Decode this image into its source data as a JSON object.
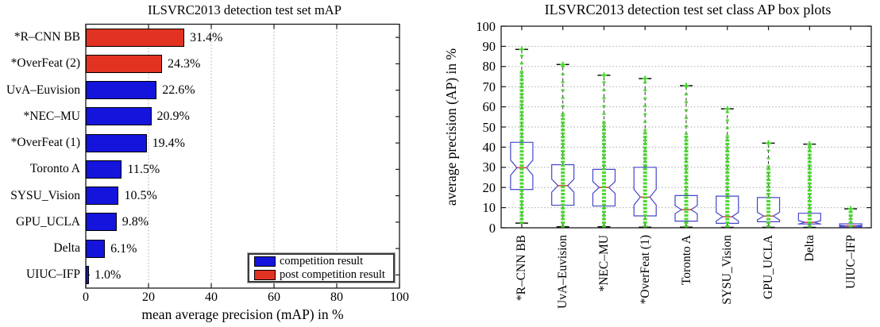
{
  "chart_data": [
    {
      "type": "bar",
      "orientation": "horizontal",
      "title": "ILSVRC2013 detection test set mAP",
      "xlabel": "mean average precision (mAP) in %",
      "xlim": [
        0,
        100
      ],
      "x_ticks": [
        0,
        20,
        40,
        60,
        80,
        100
      ],
      "grid": "vertical dotted at 20,40,60,80",
      "categories": [
        "*R–CNN BB",
        "*OverFeat (2)",
        "UvA–Euvision",
        "*NEC–MU",
        "*OverFeat (1)",
        "Toronto A",
        "SYSU_Vision",
        "GPU_UCLA",
        "Delta",
        "UIUC–IFP"
      ],
      "values": [
        31.4,
        24.3,
        22.6,
        20.9,
        19.4,
        11.5,
        10.5,
        9.8,
        6.1,
        1.0
      ],
      "value_labels": [
        "31.4%",
        "24.3%",
        "22.6%",
        "20.9%",
        "19.4%",
        "11.5%",
        "10.5%",
        "9.8%",
        "6.1%",
        "1.0%"
      ],
      "bar_groups": [
        "post",
        "post",
        "competition",
        "competition",
        "competition",
        "competition",
        "competition",
        "competition",
        "competition",
        "competition"
      ],
      "legend": {
        "position": "bottom-right",
        "entries": [
          {
            "label": "competition result",
            "group": "competition"
          },
          {
            "label": "post competition result",
            "group": "post"
          }
        ]
      }
    },
    {
      "type": "boxplot",
      "title": "ILSVRC2013 detection test set class AP box plots",
      "ylabel": "average precision (AP) in %",
      "ylim": [
        0,
        100
      ],
      "y_ticks": [
        0,
        10,
        20,
        30,
        40,
        50,
        60,
        70,
        80,
        90,
        100
      ],
      "grid": "horizontal dotted at 10..90",
      "notched": true,
      "categories": [
        "*R–CNN BB",
        "UvA–Euvision",
        "*NEC–MU",
        "*OverFeat (1)",
        "Toronto A",
        "SYSU_Vision",
        "GPU_UCLA",
        "Delta",
        "UIUC–IFP"
      ],
      "series": [
        {
          "name": "*R–CNN BB",
          "whisker_low": 2.3,
          "q1": 19.0,
          "median": 29.8,
          "q3": 42.4,
          "whisker_high": 88.5,
          "dense_points_top": 77
        },
        {
          "name": "UvA–Euvision",
          "whisker_low": 0.5,
          "q1": 11.2,
          "median": 20.9,
          "q3": 31.3,
          "whisker_high": 81.0,
          "dense_points_top": 56
        },
        {
          "name": "*NEC–MU",
          "whisker_low": 0.5,
          "q1": 10.8,
          "median": 20.0,
          "q3": 29.0,
          "whisker_high": 75.7,
          "dense_points_top": 52
        },
        {
          "name": "*OverFeat (1)",
          "whisker_low": 0.3,
          "q1": 5.9,
          "median": 15.2,
          "q3": 30.0,
          "whisker_high": 74.0,
          "dense_points_top": 48
        },
        {
          "name": "Toronto A",
          "whisker_low": 0.3,
          "q1": 3.3,
          "median": 9.0,
          "q3": 16.0,
          "whisker_high": 70.5,
          "dense_points_top": 46
        },
        {
          "name": "SYSU_Vision",
          "whisker_low": 0.2,
          "q1": 2.2,
          "median": 5.5,
          "q3": 15.7,
          "whisker_high": 59.0,
          "dense_points_top": 45
        },
        {
          "name": "GPU_UCLA",
          "whisker_low": 0.2,
          "q1": 3.0,
          "median": 5.8,
          "q3": 15.0,
          "whisker_high": 42.0,
          "dense_points_top": 30
        },
        {
          "name": "Delta",
          "whisker_low": 0.2,
          "q1": 1.9,
          "median": 2.7,
          "q3": 7.2,
          "whisker_high": 41.5,
          "dense_points_top": 40
        },
        {
          "name": "UIUC–IFP",
          "whisker_low": 0.1,
          "q1": 0.4,
          "median": 1.0,
          "q3": 2.0,
          "whisker_high": 9.4,
          "dense_points_top": 9
        }
      ]
    }
  ],
  "colors": {
    "competition": "#1414dc",
    "post": "#e23322",
    "bar_outline": "#000000",
    "box_outline": "#4646c8",
    "median": "#d44a33",
    "points_green": "#46d62a",
    "whisker": "#333333",
    "cap": "#111111",
    "grid": "#aaaaaa",
    "axis": "#1a1a1a"
  }
}
